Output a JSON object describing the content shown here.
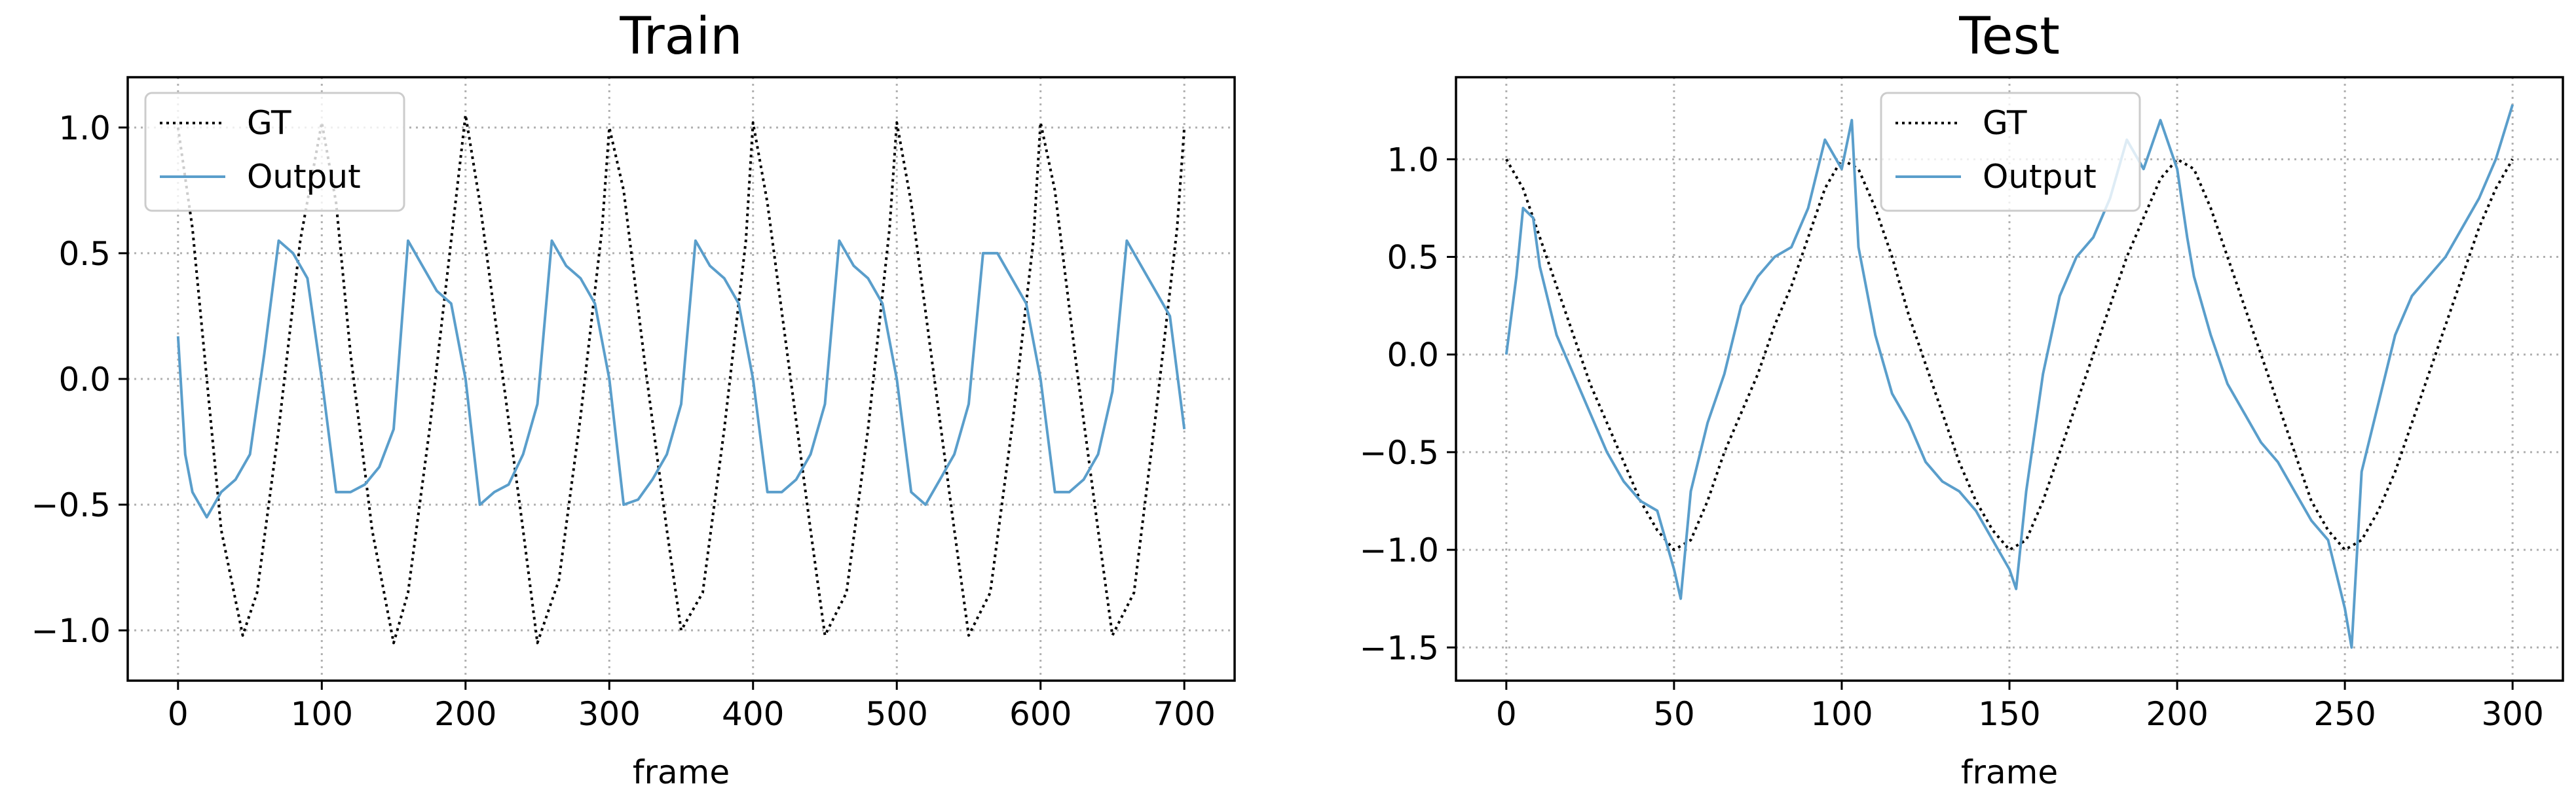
{
  "chart_data": [
    {
      "type": "line",
      "title": "Train",
      "xlabel": "frame",
      "ylabel": "",
      "xlim": [
        -35,
        735
      ],
      "ylim": [
        -1.2,
        1.2
      ],
      "xticks": [
        0,
        100,
        200,
        300,
        400,
        500,
        600,
        700
      ],
      "yticks": [
        1.0,
        0.5,
        0.0,
        -0.5,
        -1.0
      ],
      "xtick_labels": [
        "0",
        "100",
        "200",
        "300",
        "400",
        "500",
        "600",
        "700"
      ],
      "ytick_labels": [
        "1.0",
        "0.5",
        "0.0",
        "−0.5",
        "−1.0"
      ],
      "grid": true,
      "legend_position": "top-left",
      "series": [
        {
          "name": "GT",
          "style": "dotted",
          "color": "#000000",
          "x": [
            0,
            10,
            20,
            30,
            45,
            55,
            70,
            85,
            100,
            110,
            120,
            135,
            150,
            160,
            175,
            190,
            200,
            210,
            225,
            240,
            250,
            265,
            280,
            295,
            300,
            310,
            325,
            340,
            350,
            365,
            380,
            395,
            400,
            410,
            425,
            440,
            450,
            465,
            480,
            495,
            500,
            510,
            525,
            540,
            550,
            565,
            580,
            595,
            600,
            610,
            625,
            640,
            650,
            665,
            680,
            695,
            700
          ],
          "values": [
            1.0,
            0.6,
            0.0,
            -0.6,
            -1.02,
            -0.85,
            -0.2,
            0.55,
            1.02,
            0.7,
            0.1,
            -0.6,
            -1.05,
            -0.85,
            -0.2,
            0.55,
            1.05,
            0.7,
            0.05,
            -0.6,
            -1.05,
            -0.8,
            -0.15,
            0.6,
            1.0,
            0.75,
            0.05,
            -0.6,
            -1.0,
            -0.85,
            -0.2,
            0.55,
            1.02,
            0.7,
            0.05,
            -0.6,
            -1.02,
            -0.85,
            -0.2,
            0.6,
            1.02,
            0.7,
            0.05,
            -0.6,
            -1.02,
            -0.85,
            -0.2,
            0.55,
            1.02,
            0.75,
            0.05,
            -0.6,
            -1.02,
            -0.85,
            -0.15,
            0.6,
            1.0
          ]
        },
        {
          "name": "Output",
          "style": "solid",
          "color": "#5a9ecb",
          "x": [
            0,
            5,
            10,
            20,
            30,
            40,
            50,
            60,
            70,
            80,
            90,
            100,
            110,
            120,
            130,
            140,
            150,
            160,
            170,
            180,
            190,
            200,
            210,
            220,
            230,
            240,
            250,
            260,
            270,
            280,
            290,
            300,
            310,
            320,
            330,
            340,
            350,
            360,
            370,
            380,
            390,
            400,
            410,
            420,
            430,
            440,
            450,
            460,
            470,
            480,
            490,
            500,
            510,
            520,
            530,
            540,
            550,
            560,
            570,
            580,
            590,
            600,
            610,
            620,
            630,
            640,
            650,
            660,
            670,
            680,
            690,
            700
          ],
          "values": [
            0.17,
            -0.3,
            -0.45,
            -0.55,
            -0.45,
            -0.4,
            -0.3,
            0.1,
            0.55,
            0.5,
            0.4,
            0.0,
            -0.45,
            -0.45,
            -0.42,
            -0.35,
            -0.2,
            0.55,
            0.45,
            0.35,
            0.3,
            0.0,
            -0.5,
            -0.45,
            -0.42,
            -0.3,
            -0.1,
            0.55,
            0.45,
            0.4,
            0.3,
            0.0,
            -0.5,
            -0.48,
            -0.4,
            -0.3,
            -0.1,
            0.55,
            0.45,
            0.4,
            0.3,
            0.0,
            -0.45,
            -0.45,
            -0.4,
            -0.3,
            -0.1,
            0.55,
            0.45,
            0.4,
            0.3,
            0.0,
            -0.45,
            -0.5,
            -0.4,
            -0.3,
            -0.1,
            0.5,
            0.5,
            0.4,
            0.3,
            0.0,
            -0.45,
            -0.45,
            -0.4,
            -0.3,
            -0.05,
            0.55,
            0.45,
            0.35,
            0.25,
            -0.2
          ]
        }
      ]
    },
    {
      "type": "line",
      "title": "Test",
      "xlabel": "frame",
      "ylabel": "",
      "xlim": [
        -15,
        315
      ],
      "ylim": [
        -1.67,
        1.42
      ],
      "xticks": [
        0,
        50,
        100,
        150,
        200,
        250,
        300
      ],
      "yticks": [
        1.0,
        0.5,
        0.0,
        -0.5,
        -1.0,
        -1.5
      ],
      "xtick_labels": [
        "0",
        "50",
        "100",
        "150",
        "200",
        "250",
        "300"
      ],
      "ytick_labels": [
        "1.0",
        "0.5",
        "0.0",
        "−0.5",
        "−1.0",
        "−1.5"
      ],
      "grid": true,
      "legend_position": "top-center",
      "series": [
        {
          "name": "GT",
          "style": "dotted",
          "color": "#000000",
          "x": [
            0,
            5,
            10,
            15,
            20,
            25,
            30,
            35,
            40,
            45,
            50,
            55,
            60,
            65,
            70,
            75,
            80,
            85,
            90,
            95,
            100,
            105,
            110,
            115,
            120,
            125,
            130,
            135,
            140,
            145,
            150,
            155,
            160,
            165,
            170,
            175,
            180,
            185,
            190,
            195,
            200,
            205,
            210,
            215,
            220,
            225,
            230,
            235,
            240,
            245,
            250,
            255,
            260,
            265,
            270,
            275,
            280,
            285,
            290,
            295,
            300
          ],
          "values": [
            1.0,
            0.85,
            0.6,
            0.35,
            0.1,
            -0.15,
            -0.35,
            -0.55,
            -0.75,
            -0.9,
            -1.0,
            -0.95,
            -0.75,
            -0.5,
            -0.3,
            -0.1,
            0.15,
            0.35,
            0.6,
            0.85,
            1.0,
            0.95,
            0.75,
            0.5,
            0.2,
            -0.05,
            -0.3,
            -0.55,
            -0.75,
            -0.9,
            -1.0,
            -0.95,
            -0.75,
            -0.5,
            -0.25,
            0.0,
            0.25,
            0.5,
            0.7,
            0.9,
            1.0,
            0.95,
            0.75,
            0.5,
            0.25,
            0.0,
            -0.25,
            -0.5,
            -0.75,
            -0.9,
            -1.0,
            -0.95,
            -0.8,
            -0.6,
            -0.35,
            -0.1,
            0.15,
            0.4,
            0.65,
            0.85,
            1.0
          ]
        },
        {
          "name": "Output",
          "style": "solid",
          "color": "#5a9ecb",
          "x": [
            0,
            3,
            5,
            8,
            10,
            15,
            20,
            25,
            30,
            35,
            40,
            45,
            50,
            52,
            55,
            60,
            65,
            70,
            75,
            80,
            85,
            90,
            95,
            100,
            103,
            105,
            110,
            115,
            120,
            125,
            130,
            135,
            140,
            145,
            150,
            152,
            155,
            160,
            165,
            170,
            175,
            180,
            185,
            190,
            195,
            200,
            203,
            205,
            210,
            215,
            220,
            225,
            230,
            235,
            240,
            245,
            250,
            252,
            255,
            260,
            265,
            270,
            275,
            280,
            285,
            290,
            295,
            300
          ],
          "values": [
            0.0,
            0.4,
            0.75,
            0.7,
            0.45,
            0.1,
            -0.1,
            -0.3,
            -0.5,
            -0.65,
            -0.75,
            -0.8,
            -1.1,
            -1.25,
            -0.7,
            -0.35,
            -0.1,
            0.25,
            0.4,
            0.5,
            0.55,
            0.75,
            1.1,
            0.95,
            1.2,
            0.55,
            0.1,
            -0.2,
            -0.35,
            -0.55,
            -0.65,
            -0.7,
            -0.8,
            -0.95,
            -1.1,
            -1.2,
            -0.7,
            -0.1,
            0.3,
            0.5,
            0.6,
            0.8,
            1.1,
            0.95,
            1.2,
            0.95,
            0.6,
            0.4,
            0.1,
            -0.15,
            -0.3,
            -0.45,
            -0.55,
            -0.7,
            -0.85,
            -0.95,
            -1.3,
            -1.5,
            -0.6,
            -0.25,
            0.1,
            0.3,
            0.4,
            0.5,
            0.65,
            0.8,
            1.0,
            1.28
          ]
        }
      ]
    }
  ]
}
